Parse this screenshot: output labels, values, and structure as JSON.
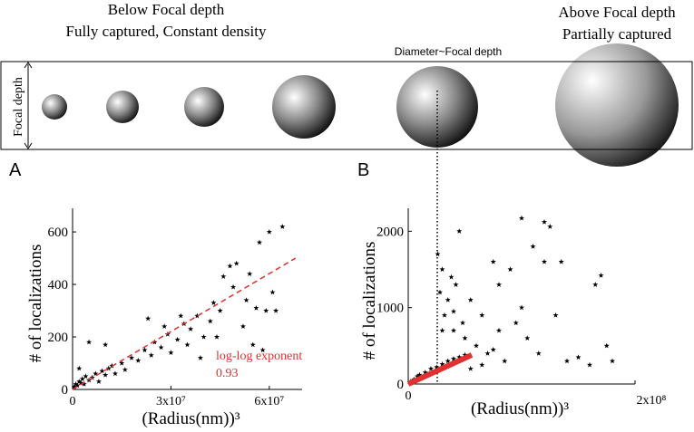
{
  "diagram": {
    "below_title": "Below Focal depth",
    "below_subtitle": "Fully captured, Constant density",
    "middle_label": "Diameter~Focal depth",
    "above_title": "Above Focal depth",
    "above_subtitle": "Partially captured",
    "depth_label": "Focal depth"
  },
  "chart_data": [
    {
      "type": "scatter",
      "panel": "A",
      "y_label": "# of localizations",
      "x_label": "(Radius(nm))³",
      "xlim": [
        0,
        70000000.0
      ],
      "ylim": [
        0,
        690
      ],
      "xticks": [
        0,
        {
          "value": 30000000.0,
          "label": "3x10⁷"
        },
        {
          "value": 60000000.0,
          "label": "6x10⁷"
        }
      ],
      "yticks": [
        0,
        200,
        400,
        600
      ],
      "series": [
        {
          "color": "#000000",
          "x": [
            500000.0,
            1000000.0,
            1500000.0,
            2000000.0,
            2500000.0,
            3000000.0,
            3500000.0,
            4000000.0,
            5000000.0,
            6000000.0,
            7000000.0,
            8000000.0,
            9000000.0,
            10000000.0,
            11000000.0,
            12000000.0,
            13000000.0,
            15000000.0,
            16000000.0,
            18000000.0,
            20000000.0,
            22000000.0,
            24000000.0,
            25000000.0,
            27000000.0,
            29000000.0,
            30000000.0,
            32000000.0,
            34000000.0,
            35000000.0,
            36000000.0,
            38000000.0,
            40000000.0,
            42000000.0,
            43000000.0,
            45000000.0,
            46000000.0,
            48000000.0,
            49000000.0,
            50000000.0,
            52000000.0,
            53000000.0,
            55000000.0,
            56000000.0,
            57000000.0,
            58000000.0,
            59000000.0,
            60000000.0,
            61000000.0,
            62000000.0,
            64000000.0,
            5000000.0,
            10000000.0,
            23000000.0,
            28000000.0,
            33000000.0,
            39000000.0,
            44000000.0,
            54000000.0,
            2000000.0
          ],
          "values": [
            10,
            20,
            15,
            30,
            25,
            40,
            20,
            50,
            35,
            45,
            60,
            30,
            70,
            55,
            80,
            90,
            60,
            100,
            75,
            120,
            110,
            150,
            130,
            180,
            160,
            210,
            140,
            190,
            250,
            170,
            230,
            280,
            200,
            260,
            330,
            300,
            430,
            470,
            390,
            480,
            240,
            340,
            170,
            310,
            560,
            150,
            300,
            600,
            370,
            300,
            620,
            180,
            170,
            270,
            240,
            280,
            120,
            200,
            440,
            80
          ]
        }
      ],
      "fit": {
        "x": [
          0,
          68000000.0
        ],
        "values": [
          0,
          500
        ],
        "color": "#e03030"
      },
      "annotation": [
        "log-log exponent",
        "0.93"
      ]
    },
    {
      "type": "scatter",
      "panel": "B",
      "y_label": "# of localizations",
      "x_label": "(Radius(nm))³",
      "xlim": [
        0,
        200000000.0
      ],
      "ylim": [
        0,
        2300
      ],
      "xticks": [
        0,
        {
          "value": 200000000.0,
          "label": "2x10⁸"
        }
      ],
      "yticks": [
        0,
        1000,
        2000
      ],
      "series": [
        {
          "color": "#000000",
          "x": [
            2000000.0,
            5000000.0,
            8000000.0,
            10000000.0,
            15000000.0,
            20000000.0,
            25000000.0,
            30000000.0,
            35000000.0,
            40000000.0,
            45000000.0,
            50000000.0,
            26000000.0,
            28000000.0,
            30000000.0,
            32000000.0,
            35000000.0,
            38000000.0,
            40000000.0,
            42000000.0,
            45000000.0,
            48000000.0,
            50000000.0,
            55000000.0,
            60000000.0,
            65000000.0,
            70000000.0,
            75000000.0,
            80000000.0,
            85000000.0,
            90000000.0,
            95000000.0,
            100000000.0,
            105000000.0,
            110000000.0,
            115000000.0,
            120000000.0,
            125000000.0,
            130000000.0,
            135000000.0,
            140000000.0,
            150000000.0,
            160000000.0,
            165000000.0,
            170000000.0,
            175000000.0,
            180000000.0,
            55000000.0,
            65000000.0,
            75000000.0,
            30000000.0,
            40000000.0,
            80000000.0,
            100000000.0,
            120000000.0
          ],
          "values": [
            30,
            60,
            100,
            120,
            150,
            200,
            220,
            260,
            300,
            330,
            350,
            380,
            1700,
            1200,
            1500,
            900,
            1100,
            1400,
            700,
            1300,
            2000,
            800,
            600,
            1100,
            500,
            900,
            400,
            1600,
            700,
            300,
            1500,
            800,
            2170,
            600,
            1800,
            400,
            2120,
            2060,
            900,
            1600,
            300,
            350,
            250,
            1300,
            1420,
            500,
            300,
            200,
            250,
            450,
            700,
            950,
            1300,
            1000,
            1600
          ]
        }
      ],
      "fit": {
        "x": [
          0,
          56000000.0
        ],
        "values": [
          0,
          380
        ],
        "color": "#e03030"
      },
      "vline": 25600000.0
    }
  ]
}
